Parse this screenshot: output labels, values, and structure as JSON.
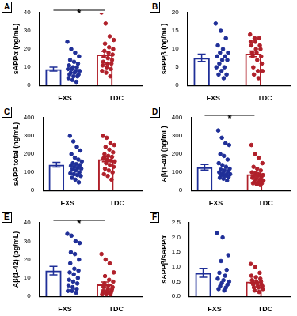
{
  "chart_data": [
    {
      "type": "bar",
      "title": "A",
      "y_label": "sAPPα (ng/mL)",
      "categories": [
        "FXS",
        "TDC"
      ],
      "colors": [
        "#1f2f98",
        "#b0202a"
      ],
      "values": [
        9,
        17
      ],
      "errors": [
        1.1,
        1.7
      ],
      "points": [
        [
          24,
          20,
          18,
          16,
          14,
          13,
          12,
          11,
          10,
          10,
          9,
          9,
          8,
          8,
          7,
          7,
          6,
          6,
          5,
          5,
          4,
          3,
          2
        ],
        [
          40,
          34,
          27,
          25,
          23,
          21,
          20,
          19,
          18,
          17,
          16,
          15,
          14,
          13,
          12,
          12,
          11,
          10,
          9,
          8,
          7,
          5
        ]
      ],
      "annotation": "*",
      "ylim": [
        0,
        40
      ],
      "yticks": [
        0,
        10,
        20,
        30,
        40
      ],
      "grid": false
    },
    {
      "type": "bar",
      "title": "B",
      "y_label": "sAPPβ (ng/mL)",
      "categories": [
        "FXS",
        "TDC"
      ],
      "colors": [
        "#1f2f98",
        "#b0202a"
      ],
      "values": [
        7.6,
        8.7
      ],
      "errors": [
        1,
        0.8
      ],
      "points": [
        [
          17,
          15,
          13,
          11,
          10,
          9,
          9,
          8,
          8,
          7,
          7,
          6,
          5,
          5,
          4,
          3,
          3,
          2
        ],
        [
          14,
          13,
          13,
          12,
          12,
          11,
          11,
          10,
          10,
          9,
          9,
          8,
          8,
          7,
          6,
          5,
          4,
          4,
          3,
          2
        ]
      ],
      "ylim": [
        0,
        20
      ],
      "yticks": [
        0,
        5,
        10,
        15,
        20
      ],
      "grid": false
    },
    {
      "type": "bar",
      "title": "C",
      "y_label": "sAPP total (ng/mL)",
      "categories": [
        "FXS",
        "TDC"
      ],
      "colors": [
        "#1f2f98",
        "#b0202a"
      ],
      "values": [
        142,
        172
      ],
      "errors": [
        13,
        14
      ],
      "points": [
        [
          300,
          270,
          240,
          220,
          200,
          180,
          170,
          160,
          150,
          145,
          140,
          135,
          130,
          125,
          120,
          115,
          110,
          100,
          95,
          90,
          85,
          80,
          70,
          60,
          45
        ],
        [
          300,
          290,
          260,
          250,
          240,
          225,
          210,
          200,
          190,
          185,
          175,
          170,
          165,
          160,
          150,
          140,
          130,
          120,
          110,
          100,
          90,
          80,
          60
        ]
      ],
      "ylim": [
        0,
        400
      ],
      "yticks": [
        0,
        100,
        200,
        300,
        400
      ],
      "grid": false
    },
    {
      "type": "bar",
      "title": "D",
      "y_label": "Aβ(1-40) (pg/mL)",
      "categories": [
        "FXS",
        "TDC"
      ],
      "colors": [
        "#1f2f98",
        "#b0202a"
      ],
      "values": [
        128,
        90
      ],
      "errors": [
        15,
        10
      ],
      "points": [
        [
          330,
          290,
          260,
          250,
          200,
          190,
          170,
          150,
          140,
          130,
          120,
          115,
          110,
          105,
          100,
          95,
          90,
          90,
          85,
          80,
          75,
          70,
          65,
          55
        ],
        [
          250,
          200,
          180,
          150,
          130,
          120,
          110,
          100,
          95,
          90,
          85,
          80,
          80,
          75,
          70,
          65,
          60,
          55,
          50,
          45,
          40,
          40,
          35,
          30
        ]
      ],
      "annotation": "*",
      "ylim": [
        0,
        400
      ],
      "yticks": [
        0,
        100,
        200,
        300,
        400
      ],
      "grid": false
    },
    {
      "type": "bar",
      "title": "E",
      "y_label": "Aβ(1-42) (pg/mL)",
      "categories": [
        "FXS",
        "TDC"
      ],
      "colors": [
        "#1f2f98",
        "#b0202a"
      ],
      "values": [
        14,
        6.5
      ],
      "errors": [
        2.3,
        1.3
      ],
      "points": [
        [
          34,
          33,
          30,
          29,
          24,
          23,
          20,
          18,
          15,
          14,
          13,
          12,
          10,
          9,
          8,
          7,
          6,
          5,
          4,
          3,
          3,
          2
        ],
        [
          23,
          20,
          18,
          13,
          11,
          9,
          8,
          7,
          6,
          5,
          5,
          4,
          4,
          3,
          3,
          3,
          2,
          2,
          2,
          1,
          1,
          1
        ]
      ],
      "annotation": "*",
      "ylim": [
        0,
        40
      ],
      "yticks": [
        0,
        10,
        20,
        30,
        40
      ],
      "grid": false
    },
    {
      "type": "bar",
      "title": "F",
      "y_label": "sAPPβ/sAPPα",
      "categories": [
        "FXS",
        "TDC"
      ],
      "colors": [
        "#1f2f98",
        "#b0202a"
      ],
      "values": [
        0.8,
        0.5
      ],
      "errors": [
        0.15,
        0.05
      ],
      "points": [
        [
          2.15,
          2,
          1.4,
          1.2,
          0.9,
          0.8,
          0.7,
          0.6,
          0.55,
          0.5,
          0.45,
          0.4,
          0.35,
          0.3,
          0.25,
          0.2
        ],
        [
          1.1,
          1,
          0.8,
          0.7,
          0.65,
          0.6,
          0.55,
          0.5,
          0.5,
          0.45,
          0.45,
          0.4,
          0.4,
          0.35,
          0.35,
          0.3,
          0.3,
          0.25,
          0.2,
          0.15
        ]
      ],
      "ylim": [
        0,
        2.5
      ],
      "yticks": [
        {
          "value": 0,
          "label": "0.0"
        },
        0.5,
        {
          "value": 1,
          "label": "1.0"
        },
        1.5,
        {
          "value": 2,
          "label": "2.0"
        },
        2.5
      ],
      "grid": false
    }
  ]
}
